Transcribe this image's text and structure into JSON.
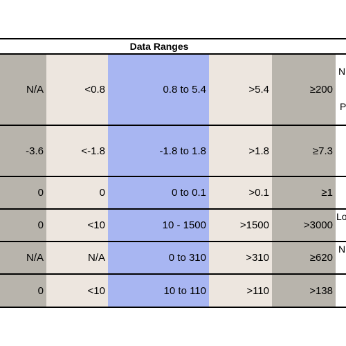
{
  "table": {
    "title": "Data Ranges",
    "rows": [
      {
        "cells": [
          "N/A",
          "<0.8",
          "0.8 to 5.4",
          ">5.4",
          "≥200"
        ],
        "note_a": "N",
        "note_b": "P"
      },
      {
        "cells": [
          "-3.6",
          "<-1.8",
          "-1.8 to 1.8",
          ">1.8",
          "≥7.3"
        ]
      },
      {
        "cells": [
          "0",
          "0",
          "0 to 0.1",
          ">0.1",
          "≥1"
        ]
      },
      {
        "cells": [
          "0",
          "<10",
          "10 - 1500",
          ">1500",
          ">3000"
        ],
        "note_a": "Lo"
      },
      {
        "cells": [
          "N/A",
          "N/A",
          "0 to 310",
          ">310",
          "≥620"
        ],
        "note_a": "N"
      },
      {
        "cells": [
          "0",
          "<10",
          "10 to 110",
          ">110",
          ">138"
        ]
      }
    ]
  }
}
